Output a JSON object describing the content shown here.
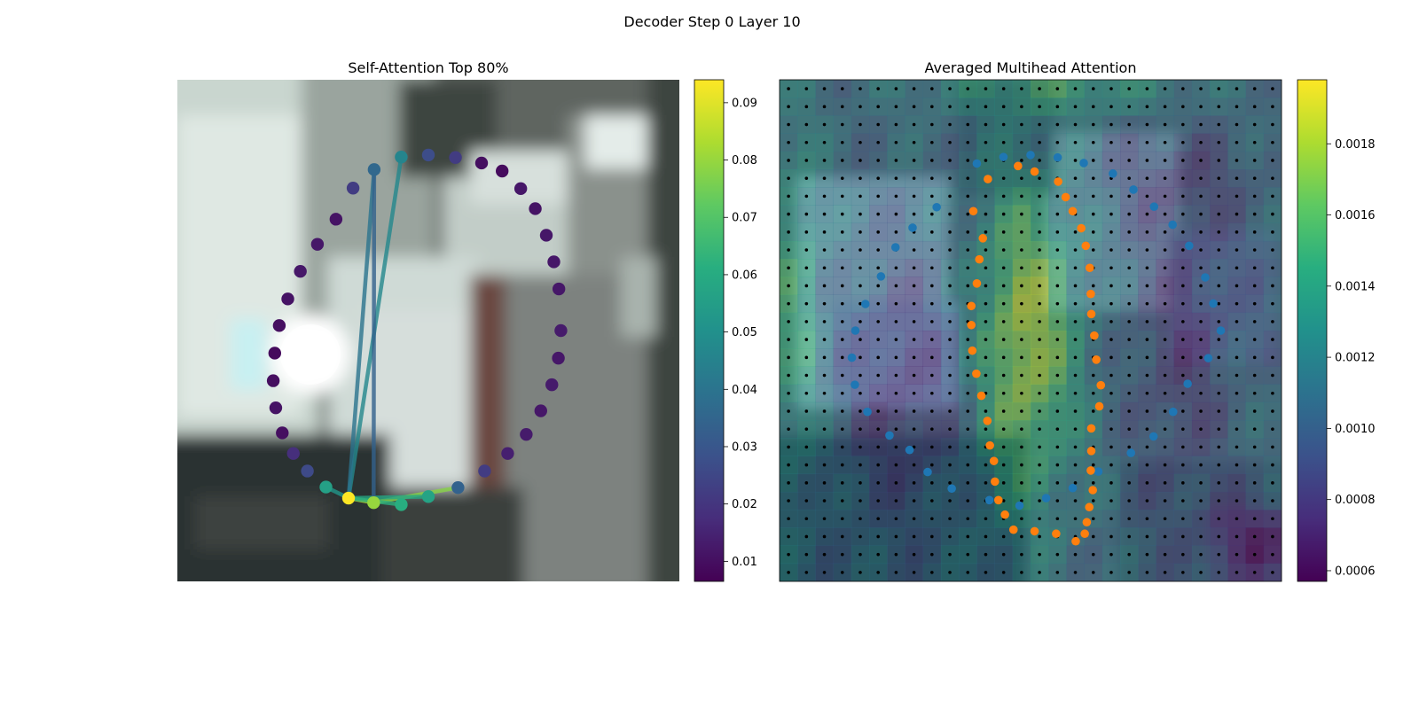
{
  "figure": {
    "suptitle": "Decoder Step 0 Layer 10"
  },
  "chart_data": [
    {
      "type": "scatter",
      "title": "Self-Attention Top 80%",
      "background": "blurred street-scene image",
      "grid": false,
      "colormap": "viridis",
      "colorbar": {
        "range": [
          0.0065,
          0.094
        ],
        "ticks": [
          "0.01",
          "0.02",
          "0.03",
          "0.04",
          "0.05",
          "0.06",
          "0.07",
          "0.08",
          "0.09"
        ]
      },
      "points": {
        "x": [
          0.446,
          0.5,
          0.554,
          0.606,
          0.647,
          0.684,
          0.713,
          0.735,
          0.75,
          0.76,
          0.764,
          0.759,
          0.746,
          0.724,
          0.695,
          0.658,
          0.612,
          0.559,
          0.5,
          0.446,
          0.391,
          0.341,
          0.296,
          0.259,
          0.231,
          0.209,
          0.196,
          0.191,
          0.194,
          0.203,
          0.22,
          0.245,
          0.279,
          0.316,
          0.35,
          0.392
        ],
        "y": [
          0.154,
          0.15,
          0.155,
          0.166,
          0.182,
          0.217,
          0.257,
          0.31,
          0.363,
          0.417,
          0.5,
          0.555,
          0.608,
          0.66,
          0.707,
          0.745,
          0.78,
          0.813,
          0.831,
          0.847,
          0.843,
          0.834,
          0.812,
          0.78,
          0.745,
          0.704,
          0.654,
          0.6,
          0.545,
          0.49,
          0.437,
          0.382,
          0.328,
          0.278,
          0.216,
          0.179
        ],
        "value": [
          0.046,
          0.027,
          0.022,
          0.01,
          0.009,
          0.012,
          0.011,
          0.012,
          0.012,
          0.012,
          0.013,
          0.012,
          0.013,
          0.012,
          0.013,
          0.014,
          0.022,
          0.034,
          0.057,
          0.061,
          0.08,
          0.094,
          0.056,
          0.026,
          0.018,
          0.01,
          0.011,
          0.01,
          0.009,
          0.01,
          0.011,
          0.012,
          0.012,
          0.011,
          0.022,
          0.036
        ]
      },
      "edges": [
        {
          "from": 20,
          "to": 21,
          "value": 0.085
        },
        {
          "from": 20,
          "to": 17,
          "value": 0.078
        },
        {
          "from": 21,
          "to": 18,
          "value": 0.058
        },
        {
          "from": 21,
          "to": 19,
          "value": 0.062
        },
        {
          "from": 21,
          "to": 0,
          "value": 0.047
        },
        {
          "from": 21,
          "to": 35,
          "value": 0.04
        },
        {
          "from": 22,
          "to": 21,
          "value": 0.052
        },
        {
          "from": 35,
          "to": 20,
          "value": 0.034
        }
      ]
    },
    {
      "type": "heatmap",
      "title": "Averaged Multihead Attention",
      "background": "blurred street-scene image",
      "colormap": "viridis",
      "overlay_alpha": 0.55,
      "grid_size": [
        28,
        28
      ],
      "colorbar": {
        "range": [
          0.00057,
          0.00198
        ],
        "ticks": [
          "0.0006",
          "0.0008",
          "0.0010",
          "0.0012",
          "0.0014",
          "0.0016",
          "0.0018"
        ]
      },
      "series": [
        {
          "color": "#1f77b4",
          "x": [
            0.446,
            0.5,
            0.554,
            0.606,
            0.664,
            0.705,
            0.746,
            0.783,
            0.816,
            0.848,
            0.864,
            0.879,
            0.854,
            0.813,
            0.784,
            0.745,
            0.7,
            0.635,
            0.584,
            0.531,
            0.478,
            0.418,
            0.343,
            0.295,
            0.259,
            0.219,
            0.175,
            0.15,
            0.144,
            0.151,
            0.171,
            0.202,
            0.231,
            0.265,
            0.313,
            0.393
          ],
          "y": [
            0.154,
            0.15,
            0.155,
            0.166,
            0.187,
            0.219,
            0.253,
            0.289,
            0.331,
            0.394,
            0.446,
            0.5,
            0.555,
            0.606,
            0.662,
            0.711,
            0.744,
            0.781,
            0.814,
            0.834,
            0.849,
            0.838,
            0.815,
            0.782,
            0.738,
            0.709,
            0.662,
            0.608,
            0.554,
            0.5,
            0.447,
            0.392,
            0.334,
            0.295,
            0.254,
            0.167
          ]
        },
        {
          "color": "#ff7f0e",
          "x": [
            0.415,
            0.475,
            0.508,
            0.555,
            0.57,
            0.584,
            0.601,
            0.61,
            0.618,
            0.62,
            0.621,
            0.627,
            0.631,
            0.64,
            0.637,
            0.621,
            0.621,
            0.62,
            0.624,
            0.617,
            0.612,
            0.608,
            0.59,
            0.551,
            0.508,
            0.466,
            0.449,
            0.436,
            0.429,
            0.427,
            0.419,
            0.414,
            0.402,
            0.392,
            0.384,
            0.382,
            0.382,
            0.393,
            0.398,
            0.405,
            0.386
          ],
          "y": [
            0.198,
            0.172,
            0.183,
            0.203,
            0.234,
            0.262,
            0.296,
            0.331,
            0.375,
            0.427,
            0.467,
            0.51,
            0.558,
            0.609,
            0.651,
            0.695,
            0.74,
            0.779,
            0.818,
            0.852,
            0.882,
            0.905,
            0.92,
            0.905,
            0.9,
            0.897,
            0.867,
            0.838,
            0.801,
            0.76,
            0.729,
            0.68,
            0.63,
            0.586,
            0.54,
            0.489,
            0.451,
            0.406,
            0.358,
            0.316,
            0.262
          ]
        }
      ]
    }
  ]
}
